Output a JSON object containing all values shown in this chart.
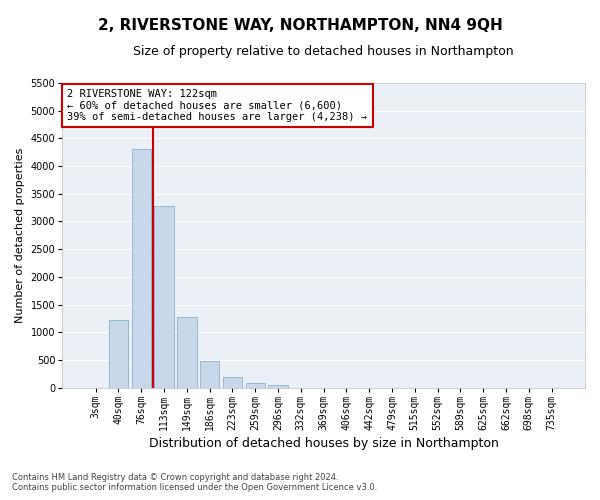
{
  "title": "2, RIVERSTONE WAY, NORTHAMPTON, NN4 9QH",
  "subtitle": "Size of property relative to detached houses in Northampton",
  "xlabel": "Distribution of detached houses by size in Northampton",
  "ylabel": "Number of detached properties",
  "footer_line1": "Contains HM Land Registry data © Crown copyright and database right 2024.",
  "footer_line2": "Contains public sector information licensed under the Open Government Licence v3.0.",
  "categories": [
    "3sqm",
    "40sqm",
    "76sqm",
    "113sqm",
    "149sqm",
    "186sqm",
    "223sqm",
    "259sqm",
    "296sqm",
    "332sqm",
    "369sqm",
    "406sqm",
    "442sqm",
    "479sqm",
    "515sqm",
    "552sqm",
    "589sqm",
    "625sqm",
    "662sqm",
    "698sqm",
    "735sqm"
  ],
  "values": [
    0,
    1230,
    4300,
    3280,
    1270,
    490,
    200,
    90,
    60,
    0,
    0,
    0,
    0,
    0,
    0,
    0,
    0,
    0,
    0,
    0,
    0
  ],
  "bar_color": "#c8d8ea",
  "bar_edge_color": "#8ab0cc",
  "vline_color": "#cc0000",
  "vline_x": 2.5,
  "annotation_line1": "2 RIVERSTONE WAY: 122sqm",
  "annotation_line2": "← 60% of detached houses are smaller (6,600)",
  "annotation_line3": "39% of semi-detached houses are larger (4,238) →",
  "annotation_box_color": "white",
  "annotation_box_edge_color": "#cc0000",
  "ylim": [
    0,
    5500
  ],
  "yticks": [
    0,
    500,
    1000,
    1500,
    2000,
    2500,
    3000,
    3500,
    4000,
    4500,
    5000,
    5500
  ],
  "background_color": "#eaf0f6",
  "grid_color": "white",
  "title_fontsize": 11,
  "subtitle_fontsize": 9,
  "xlabel_fontsize": 9,
  "ylabel_fontsize": 8,
  "tick_fontsize": 7,
  "annotation_fontsize": 7.5,
  "footer_fontsize": 6
}
